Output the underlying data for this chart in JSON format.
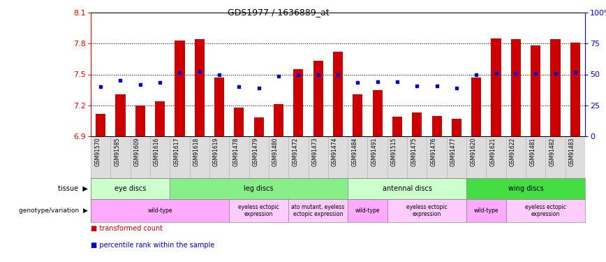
{
  "title": "GDS1977 / 1636889_at",
  "samples": [
    "GSM91570",
    "GSM91585",
    "GSM91609",
    "GSM91616",
    "GSM91617",
    "GSM91618",
    "GSM91619",
    "GSM91478",
    "GSM91479",
    "GSM91480",
    "GSM91472",
    "GSM91473",
    "GSM91474",
    "GSM91484",
    "GSM91491",
    "GSM91515",
    "GSM91475",
    "GSM91476",
    "GSM91477",
    "GSM91620",
    "GSM91621",
    "GSM91622",
    "GSM91481",
    "GSM91482",
    "GSM91483"
  ],
  "bar_values": [
    7.12,
    7.31,
    7.2,
    7.24,
    7.83,
    7.84,
    7.47,
    7.18,
    7.08,
    7.21,
    7.55,
    7.63,
    7.72,
    7.31,
    7.35,
    7.09,
    7.13,
    7.1,
    7.07,
    7.47,
    7.85,
    7.84,
    7.78,
    7.84,
    7.81
  ],
  "percentile_values": [
    7.38,
    7.44,
    7.4,
    7.42,
    7.52,
    7.53,
    7.5,
    7.38,
    7.37,
    7.48,
    7.5,
    7.5,
    7.5,
    7.42,
    7.43,
    7.43,
    7.39,
    7.39,
    7.37,
    7.5,
    7.51,
    7.51,
    7.51,
    7.51,
    7.52
  ],
  "ylim_left": [
    6.9,
    8.1
  ],
  "yticks_left": [
    6.9,
    7.2,
    7.5,
    7.8,
    8.1
  ],
  "ytick_labels_left": [
    "6.9",
    "7.2",
    "7.5",
    "7.8",
    "8.1"
  ],
  "yticks_right": [
    0,
    25,
    50,
    75,
    100
  ],
  "ytick_labels_right": [
    "0",
    "25",
    "50",
    "75",
    "100%"
  ],
  "bar_color": "#cc0000",
  "percentile_color": "#0000cc",
  "grid_lines": [
    7.2,
    7.5,
    7.8
  ],
  "tissues": [
    {
      "label": "eye discs",
      "start": 0,
      "end": 4,
      "color": "#ccffcc"
    },
    {
      "label": "leg discs",
      "start": 4,
      "end": 13,
      "color": "#88ee88"
    },
    {
      "label": "antennal discs",
      "start": 13,
      "end": 19,
      "color": "#ccffcc"
    },
    {
      "label": "wing discs",
      "start": 19,
      "end": 25,
      "color": "#44dd44"
    }
  ],
  "genotypes": [
    {
      "label": "wild-type",
      "start": 0,
      "end": 7,
      "color": "#ffaaff"
    },
    {
      "label": "eyeless ectopic\nexpression",
      "start": 7,
      "end": 10,
      "color": "#ffccff"
    },
    {
      "label": "ato mutant, eyeless\nectopic expression",
      "start": 10,
      "end": 13,
      "color": "#ffccff"
    },
    {
      "label": "wild-type",
      "start": 13,
      "end": 15,
      "color": "#ffaaff"
    },
    {
      "label": "eyeless ectopic\nexpression",
      "start": 15,
      "end": 19,
      "color": "#ffccff"
    },
    {
      "label": "wild-type",
      "start": 19,
      "end": 21,
      "color": "#ffaaff"
    },
    {
      "label": "eyeless ectopic\nexpression",
      "start": 21,
      "end": 25,
      "color": "#ffccff"
    }
  ],
  "legend_items": [
    {
      "label": "transformed count",
      "color": "#cc0000"
    },
    {
      "label": "percentile rank within the sample",
      "color": "#0000cc"
    }
  ],
  "label_tissue": "tissue",
  "label_geno": "genotype/variation",
  "xlabel_bg": "#dddddd"
}
